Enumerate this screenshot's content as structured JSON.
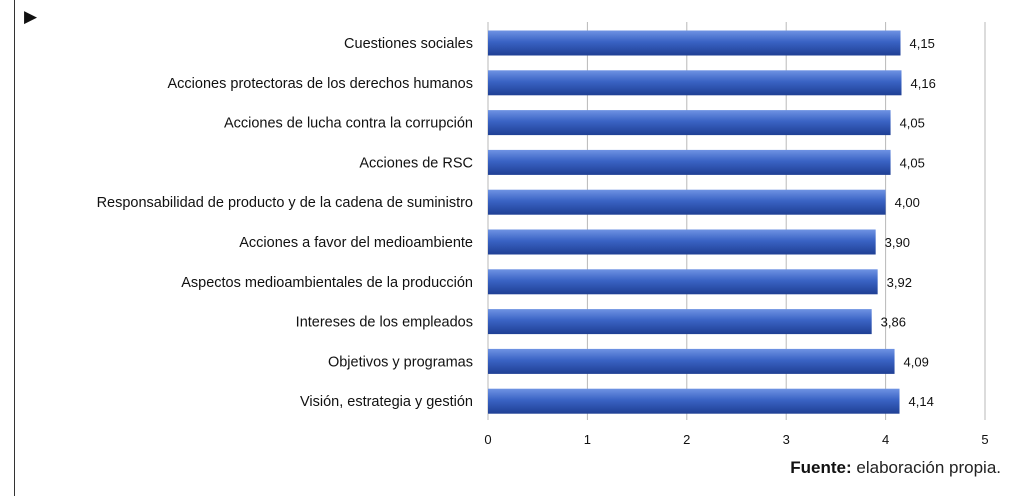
{
  "marker": "▶",
  "colors": {
    "bar": "#3a63c4",
    "bar_light": "#6f93e3",
    "bar_dark": "#1f3f94",
    "grid": "#b8b8b8",
    "text": "#111111"
  },
  "source": {
    "label": "Fuente:",
    "text": " elaboración propia."
  },
  "chart_data": {
    "type": "bar",
    "orientation": "horizontal",
    "title": "",
    "xlabel": "",
    "ylabel": "",
    "xlim": [
      0,
      5
    ],
    "ticks": [
      "0",
      "1",
      "2",
      "3",
      "4",
      "5"
    ],
    "grid": true,
    "categories": [
      "Cuestiones sociales",
      "Acciones protectoras de los derechos humanos",
      "Acciones de lucha contra la corrupción",
      "Acciones de RSC",
      "Responsabilidad de producto y de la cadena de suministro",
      "Acciones a favor del medioambiente",
      "Aspectos medioambientales de la producción",
      "Intereses de los empleados",
      "Objetivos y programas",
      "Visión, estrategia y gestión"
    ],
    "values": [
      4.15,
      4.16,
      4.05,
      4.05,
      4.0,
      3.9,
      3.92,
      3.86,
      4.09,
      4.14
    ],
    "value_labels": [
      "4,15",
      "4,16",
      "4,05",
      "4,05",
      "4,00",
      "3,90",
      "3,92",
      "3,86",
      "4,09",
      "4,14"
    ]
  }
}
